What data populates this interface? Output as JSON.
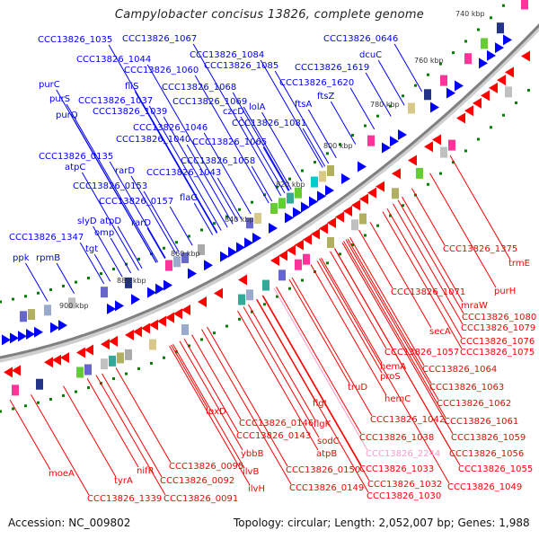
{
  "title": "Campylobacter concisus 13826, complete genome",
  "footer": {
    "accession": "Accession: NC_009802",
    "summary": "Topology: circular; Length: 2,052,007 bp; Genes: 1,988"
  },
  "ticks": [
    "740 kbp",
    "760 kbp",
    "780 kbp",
    "800 kbp",
    "820 kbp",
    "840 kbp",
    "860 kbp",
    "880 kbp",
    "900 kbp"
  ],
  "forward_genes": [
    "CCC13826_1035",
    "CCC13826_1067",
    "CCC13826_1084",
    "CCC13826_1085",
    "CCC13826_1044",
    "CCC13826_1060",
    "fliS",
    "CCC13826_1068",
    "CCC13826_1037",
    "CCC13826_1069",
    "czcD",
    "lolA",
    "CCC13826_1039",
    "CCC13826_1081",
    "purC",
    "purS",
    "purQ",
    "CCC13826_1046",
    "CCC13826_1040",
    "CCC13826_1065",
    "CCC13826_0135",
    "atpC",
    "CCC13826_1058",
    "rarD",
    "CCC13826_1043",
    "CCC13826_0153",
    "CCC13826_0157",
    "flaG",
    "rarD",
    "slyD",
    "atpD",
    "omp",
    "CCC13826_1347",
    "tgt",
    "ppk",
    "rpmB",
    "CCC13826_0646",
    "dcuC",
    "CCC13826_1619",
    "CCC13826_1620",
    "ftsA",
    "ftsZ"
  ],
  "reverse_genes": [
    "CCC13826_1375",
    "trmE",
    "purH",
    "CCC13826_1071",
    "mraW",
    "CCC13826_1080",
    "CCC13826_1079",
    "secA",
    "CCC13826_1076",
    "CCC13826_1057",
    "CCC13826_1075",
    "hemA",
    "CCC13826_1064",
    "proS",
    "CCC13826_1063",
    "truD",
    "hemC",
    "CCC13826_1062",
    "CCC13826_1042",
    "CCC13826_1061",
    "CCC13826_1038",
    "CCC13826_1059",
    "CCC13826_2244",
    "CCC13826_1056",
    "CCC13826_1033",
    "CCC13826_1055",
    "CCC13826_1032",
    "CCC13826_1049",
    "CCC13826_1030",
    "CCC13826_0150",
    "CCC13826_0149",
    "flgI",
    "flgK",
    "sodC",
    "atpB",
    "lpxD",
    "CCC13826_0146",
    "CCC13826_0143",
    "ybbB",
    "ilvB",
    "ilvH",
    "CCC13826_0095",
    "CCC13826_0092",
    "CCC13826_0091",
    "nifR",
    "tyrA",
    "CCC13826_1339",
    "moeA"
  ],
  "colors": {
    "forward": "#0000ff",
    "reverse": "#ff0000",
    "backbone": "#808080",
    "ticks": "#008000",
    "highlight": "#ff99cc"
  }
}
